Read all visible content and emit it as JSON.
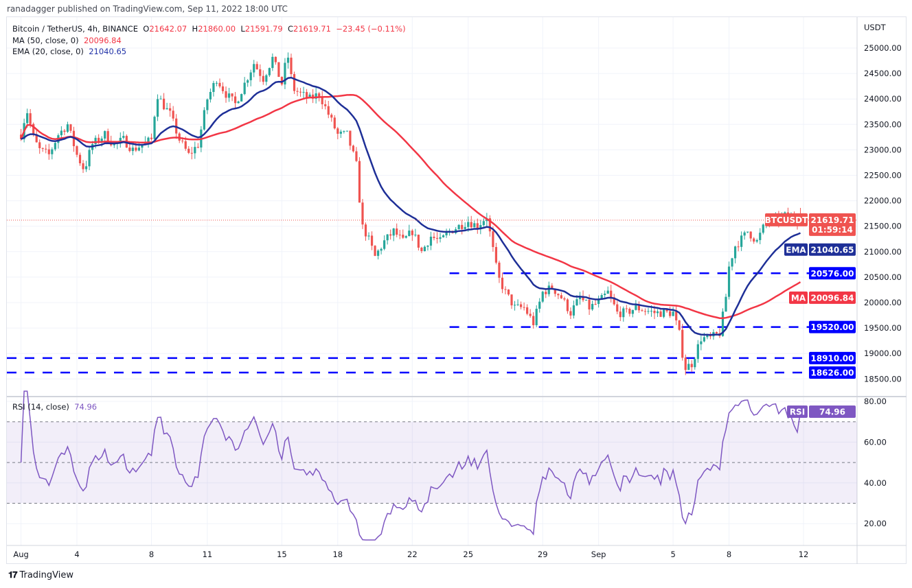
{
  "header": {
    "published": "ranadagger published on TradingView.com, Sep 11, 2022 18:00 UTC"
  },
  "legend": {
    "symbol": "Bitcoin / TetherUS, 4h, BINANCE",
    "o_label": "O",
    "o": "21642.07",
    "h_label": "H",
    "h": "21860.00",
    "l_label": "L",
    "l": "21591.79",
    "c_label": "C",
    "c": "21619.71",
    "change": "−23.45 (−0.11%)",
    "ma_label": "MA (50, close, 0)",
    "ma_value": "20096.84",
    "ema_label": "EMA (20, close, 0)",
    "ema_value": "21040.65",
    "rsi_label": "RSI (14, close)",
    "rsi_value": "74.96"
  },
  "axis": {
    "currency": "USDT"
  },
  "badges": {
    "symbol": "BTCUSDT",
    "price": "21619.71",
    "countdown": "01:59:14",
    "ema_tag": "EMA",
    "ema": "21040.65",
    "ma_tag": "MA",
    "ma": "20096.84",
    "rsi_tag": "RSI",
    "rsi": "74.96",
    "levels": [
      "20576.00",
      "19520.00",
      "18910.00",
      "18626.00"
    ]
  },
  "footer": {
    "brand": "TradingView"
  },
  "colors": {
    "up": "#26a69a",
    "down": "#ef5350",
    "ema": "#1e2f97",
    "ma": "#f23645",
    "rsi": "#7e57c2",
    "level": "#0000ff"
  },
  "chart_data": {
    "type": "candlestick",
    "title": "Bitcoin / TetherUS, 4h, BINANCE",
    "interval_hours": 4,
    "ylim": [
      18500,
      25000
    ],
    "price_ticks": [
      "18500.00",
      "19000.00",
      "19500.00",
      "20000.00",
      "20500.00",
      "21000.00",
      "21500.00",
      "22000.00",
      "22500.00",
      "23000.00",
      "23500.00",
      "24000.00",
      "24500.00",
      "25000.00"
    ],
    "rsi_ticks": [
      "20.00",
      "40.00",
      "60.00",
      "80.00"
    ],
    "rsi_bands": [
      30,
      50,
      70
    ],
    "x_labels": [
      {
        "day": 0,
        "label": "Aug"
      },
      {
        "day": 3,
        "label": "4"
      },
      {
        "day": 7,
        "label": "8"
      },
      {
        "day": 10,
        "label": "11"
      },
      {
        "day": 14,
        "label": "15"
      },
      {
        "day": 17,
        "label": "18"
      },
      {
        "day": 21,
        "label": "22"
      },
      {
        "day": 24,
        "label": "25"
      },
      {
        "day": 28,
        "label": "29"
      },
      {
        "day": 31,
        "label": "Sep"
      },
      {
        "day": 35,
        "label": "5"
      },
      {
        "day": 38,
        "label": "8"
      },
      {
        "day": 42,
        "label": "12"
      }
    ],
    "horizontal_levels": [
      {
        "price": 20576,
        "from_day": 23.0
      },
      {
        "price": 19520,
        "from_day": 23.0
      },
      {
        "price": 18910,
        "from_day": -1
      },
      {
        "price": 18626,
        "from_day": -1
      }
    ],
    "close_path_days_from_aug1": [
      [
        0,
        23300
      ],
      [
        0.3,
        23800
      ],
      [
        0.7,
        23200
      ],
      [
        1,
        23000
      ],
      [
        1.5,
        22900
      ],
      [
        2,
        23300
      ],
      [
        2.5,
        23500
      ],
      [
        3,
        22900
      ],
      [
        3.4,
        22600
      ],
      [
        3.8,
        23100
      ],
      [
        4.5,
        23300
      ],
      [
        5,
        23100
      ],
      [
        5.5,
        23200
      ],
      [
        6,
        23000
      ],
      [
        7,
        23200
      ],
      [
        7.3,
        24100
      ],
      [
        7.6,
        23900
      ],
      [
        8,
        23700
      ],
      [
        8.5,
        23200
      ],
      [
        9,
        22900
      ],
      [
        9.5,
        23100
      ],
      [
        10,
        24000
      ],
      [
        10.5,
        24400
      ],
      [
        11,
        24100
      ],
      [
        11.5,
        23900
      ],
      [
        12,
        24300
      ],
      [
        12.5,
        24700
      ],
      [
        13,
        24400
      ],
      [
        13.5,
        24800
      ],
      [
        14,
        24300
      ],
      [
        14.3,
        24900
      ],
      [
        14.6,
        24200
      ],
      [
        15,
        24100
      ],
      [
        15.5,
        24000
      ],
      [
        16,
        24100
      ],
      [
        16.5,
        23700
      ],
      [
        17,
        23300
      ],
      [
        17.5,
        23300
      ],
      [
        18,
        22700
      ],
      [
        18.3,
        21500
      ],
      [
        18.6,
        21300
      ],
      [
        19,
        20900
      ],
      [
        19.5,
        21200
      ],
      [
        20,
        21400
      ],
      [
        20.5,
        21200
      ],
      [
        21,
        21400
      ],
      [
        21.5,
        21000
      ],
      [
        22,
        21300
      ],
      [
        22.5,
        21200
      ],
      [
        23,
        21400
      ],
      [
        23.5,
        21500
      ],
      [
        24,
        21600
      ],
      [
        24.5,
        21500
      ],
      [
        25,
        21700
      ],
      [
        25.3,
        21100
      ],
      [
        25.6,
        20500
      ],
      [
        26,
        20200
      ],
      [
        26.5,
        19900
      ],
      [
        27,
        19900
      ],
      [
        27.5,
        19600
      ],
      [
        28,
        20200
      ],
      [
        28.5,
        20300
      ],
      [
        29,
        20100
      ],
      [
        29.5,
        19800
      ],
      [
        30,
        20100
      ],
      [
        30.5,
        19900
      ],
      [
        31,
        20000
      ],
      [
        31.5,
        20200
      ],
      [
        32,
        19800
      ],
      [
        32.5,
        19800
      ],
      [
        33,
        19900
      ],
      [
        34,
        19800
      ],
      [
        35,
        19800
      ],
      [
        35.4,
        19300
      ],
      [
        35.6,
        18700
      ],
      [
        36,
        18800
      ],
      [
        36.5,
        19300
      ],
      [
        37,
        19300
      ],
      [
        37.5,
        19400
      ],
      [
        37.8,
        20000
      ],
      [
        38,
        20700
      ],
      [
        38.3,
        21100
      ],
      [
        38.8,
        21300
      ],
      [
        39,
        21400
      ],
      [
        39.5,
        21200
      ],
      [
        40,
        21600
      ],
      [
        40.5,
        21600
      ],
      [
        41,
        21700
      ],
      [
        41.75,
        21620
      ]
    ],
    "last": {
      "open": 21642.07,
      "high": 21860.0,
      "low": 21591.79,
      "close": 21619.71,
      "ma50": 20096.84,
      "ema20": 21040.65,
      "rsi14": 74.96
    }
  }
}
